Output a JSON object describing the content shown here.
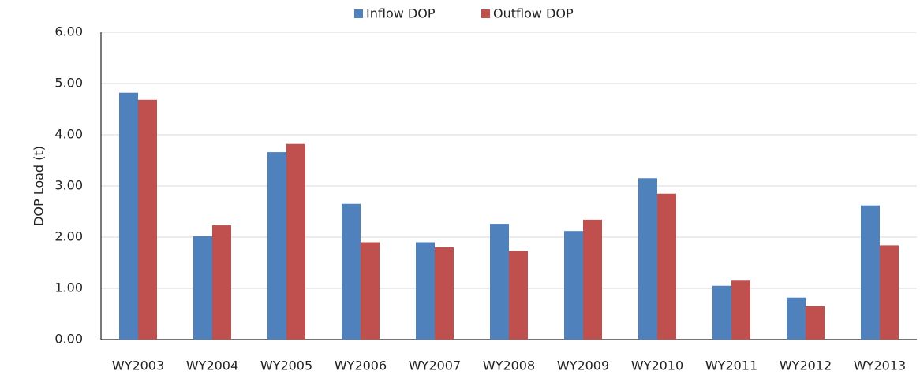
{
  "chart_data": {
    "type": "bar",
    "legend": "top",
    "y_label": "DOP Load (t)",
    "categories": [
      "WY2003",
      "WY2004",
      "WY2005",
      "WY2006",
      "WY2007",
      "WY2008",
      "WY2009",
      "WY2010",
      "WY2011",
      "WY2012",
      "WY2013"
    ],
    "series": [
      {
        "name": "Inflow DOP",
        "color": "#4f81bd",
        "values": [
          4.82,
          2.02,
          3.66,
          2.65,
          1.9,
          2.26,
          2.12,
          3.15,
          1.05,
          0.82,
          2.62
        ]
      },
      {
        "name": "Outflow DOP",
        "color": "#c0504d",
        "values": [
          4.68,
          2.23,
          3.82,
          1.9,
          1.8,
          1.73,
          2.34,
          2.85,
          1.15,
          0.65,
          1.84
        ]
      }
    ],
    "ylim": [
      0,
      6
    ],
    "yticks": [
      {
        "value": 0,
        "label": "0.00"
      },
      {
        "value": 1,
        "label": "1.00"
      },
      {
        "value": 2,
        "label": "2.00"
      },
      {
        "value": 3,
        "label": "3.00"
      },
      {
        "value": 4,
        "label": "4.00"
      },
      {
        "value": 5,
        "label": "5.00"
      },
      {
        "value": 6,
        "label": "6.00"
      }
    ],
    "grid": true
  }
}
